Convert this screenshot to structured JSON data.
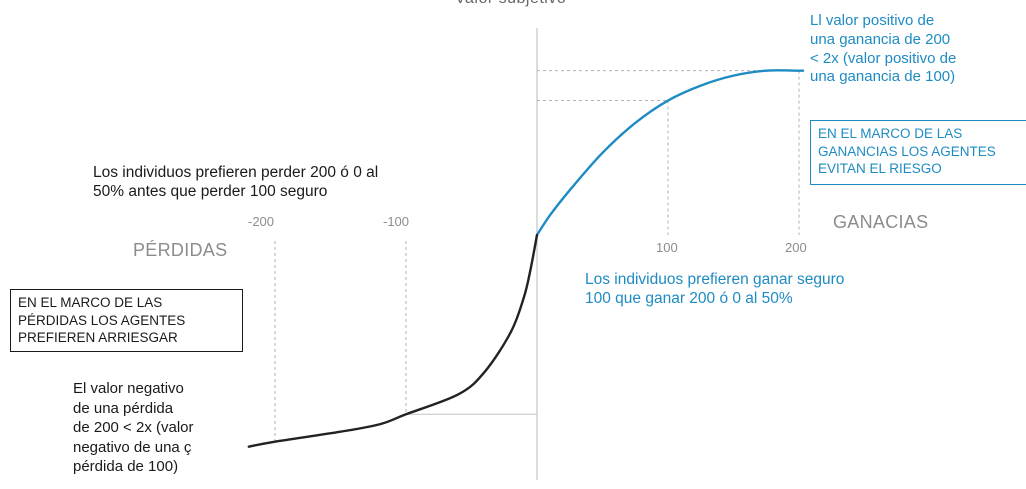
{
  "chart_data": {
    "type": "line",
    "title": "",
    "ylabel": "Valor subjetivo",
    "x_axis": {
      "negative_label": "PÉRDIDAS",
      "positive_label": "GANACIAS"
    },
    "x_ticks": [
      "-200",
      "-100",
      "100",
      "200"
    ],
    "xlim": [
      -220,
      245
    ],
    "series": [
      {
        "color": "#1e8bc3",
        "x": [
          0,
          10,
          25,
          50,
          75,
          100,
          125,
          150,
          175,
          200
        ],
        "y": [
          0,
          0.08,
          0.18,
          0.33,
          0.45,
          0.54,
          0.6,
          0.64,
          0.66,
          0.66
        ]
      },
      {
        "color": "#222222",
        "x": [
          -220,
          -200,
          -150,
          -120,
          -100,
          -60,
          -40,
          -20,
          -10,
          -5,
          0
        ],
        "y": [
          -0.85,
          -0.83,
          -0.79,
          -0.76,
          -0.72,
          -0.64,
          -0.55,
          -0.39,
          -0.25,
          -0.14,
          0
        ]
      }
    ]
  },
  "annotations": {
    "gain_value_lines": [
      "Ll valor positivo de",
      "una ganancia de 200",
      "< 2x (valor positivo de",
      "una ganancia de 100)"
    ],
    "gain_box_lines": [
      "EN EL MARCO DE LAS",
      "GANANCIAS LOS AGENTES",
      "EVITAN EL RIESGO"
    ],
    "loss_preference_lines": [
      "Los individuos prefieren perder 200 ó 0 al",
      "50% antes que perder 100 seguro"
    ],
    "gain_preference_lines": [
      "Los individuos prefieren ganar seguro",
      "100 que ganar 200 ó 0 al 50%"
    ],
    "loss_box_lines": [
      "EN EL MARCO DE LAS",
      "PÉRDIDAS LOS AGENTES",
      "PREFIEREN ARRIESGAR"
    ],
    "loss_value_lines": [
      "El valor negativo",
      "de una pérdida",
      "de 200 < 2x (valor",
      "negativo de una ç",
      "pérdida de 100)"
    ]
  },
  "colors": {
    "gain": "#1e8bc3",
    "loss": "#222222",
    "guide": "#b0b0b0",
    "axis_text": "#8c8c8c"
  }
}
